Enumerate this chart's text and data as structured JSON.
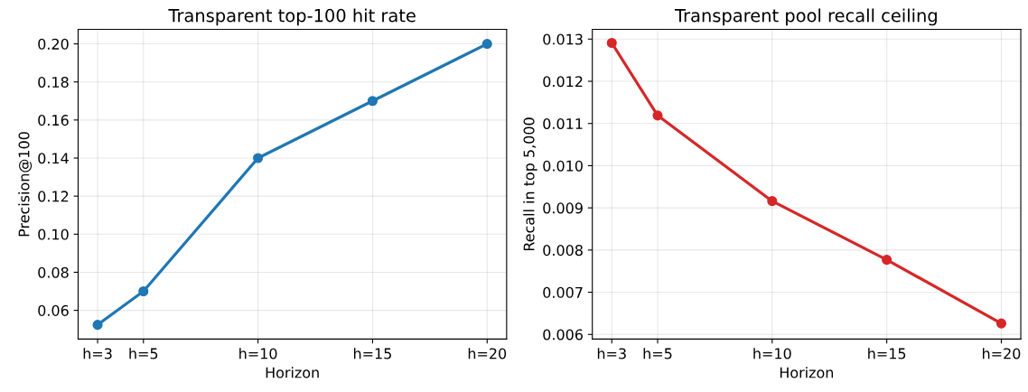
{
  "chart_data": [
    {
      "type": "line",
      "title": "Transparent top-100 hit rate",
      "xlabel": "Horizon",
      "ylabel": "Precision@100",
      "x": [
        3,
        5,
        10,
        15,
        20
      ],
      "series": [
        {
          "color": "#1f77b4",
          "values": [
            0.0524,
            0.07,
            0.14,
            0.17,
            0.2
          ]
        }
      ],
      "xlim": [
        2.15,
        20.85
      ],
      "xticks": [
        {
          "value": 3,
          "label": "h=3"
        },
        {
          "value": 5,
          "label": "h=5"
        },
        {
          "value": 10,
          "label": "h=10"
        },
        {
          "value": 15,
          "label": "h=15"
        },
        {
          "value": 20,
          "label": "h=20"
        }
      ],
      "ylim": [
        0.0449,
        0.2076
      ],
      "yticks": [
        {
          "value": 0.06,
          "label": "0.06"
        },
        {
          "value": 0.08,
          "label": "0.08"
        },
        {
          "value": 0.1,
          "label": "0.10"
        },
        {
          "value": 0.12,
          "label": "0.12"
        },
        {
          "value": 0.14,
          "label": "0.14"
        },
        {
          "value": 0.16,
          "label": "0.16"
        },
        {
          "value": 0.18,
          "label": "0.18"
        },
        {
          "value": 0.2,
          "label": "0.20"
        }
      ],
      "grid": true,
      "marker": "circle",
      "line_style": "solid"
    },
    {
      "type": "line",
      "title": "Transparent pool recall ceiling",
      "xlabel": "Horizon",
      "ylabel": "Recall in top 5,000",
      "x": [
        3,
        5,
        10,
        15,
        20
      ],
      "series": [
        {
          "color": "#d62728",
          "values": [
            0.01291,
            0.01119,
            0.00916,
            0.00777,
            0.00626
          ]
        }
      ],
      "xlim": [
        2.15,
        20.85
      ],
      "xticks": [
        {
          "value": 3,
          "label": "h=3"
        },
        {
          "value": 5,
          "label": "h=5"
        },
        {
          "value": 10,
          "label": "h=10"
        },
        {
          "value": 15,
          "label": "h=15"
        },
        {
          "value": 20,
          "label": "h=20"
        }
      ],
      "ylim": [
        0.00589,
        0.01323
      ],
      "yticks": [
        {
          "value": 0.006,
          "label": "0.006"
        },
        {
          "value": 0.007,
          "label": "0.007"
        },
        {
          "value": 0.008,
          "label": "0.008"
        },
        {
          "value": 0.009,
          "label": "0.009"
        },
        {
          "value": 0.01,
          "label": "0.010"
        },
        {
          "value": 0.011,
          "label": "0.011"
        },
        {
          "value": 0.012,
          "label": "0.012"
        },
        {
          "value": 0.013,
          "label": "0.013"
        }
      ],
      "grid": true,
      "marker": "circle",
      "line_style": "solid"
    }
  ]
}
